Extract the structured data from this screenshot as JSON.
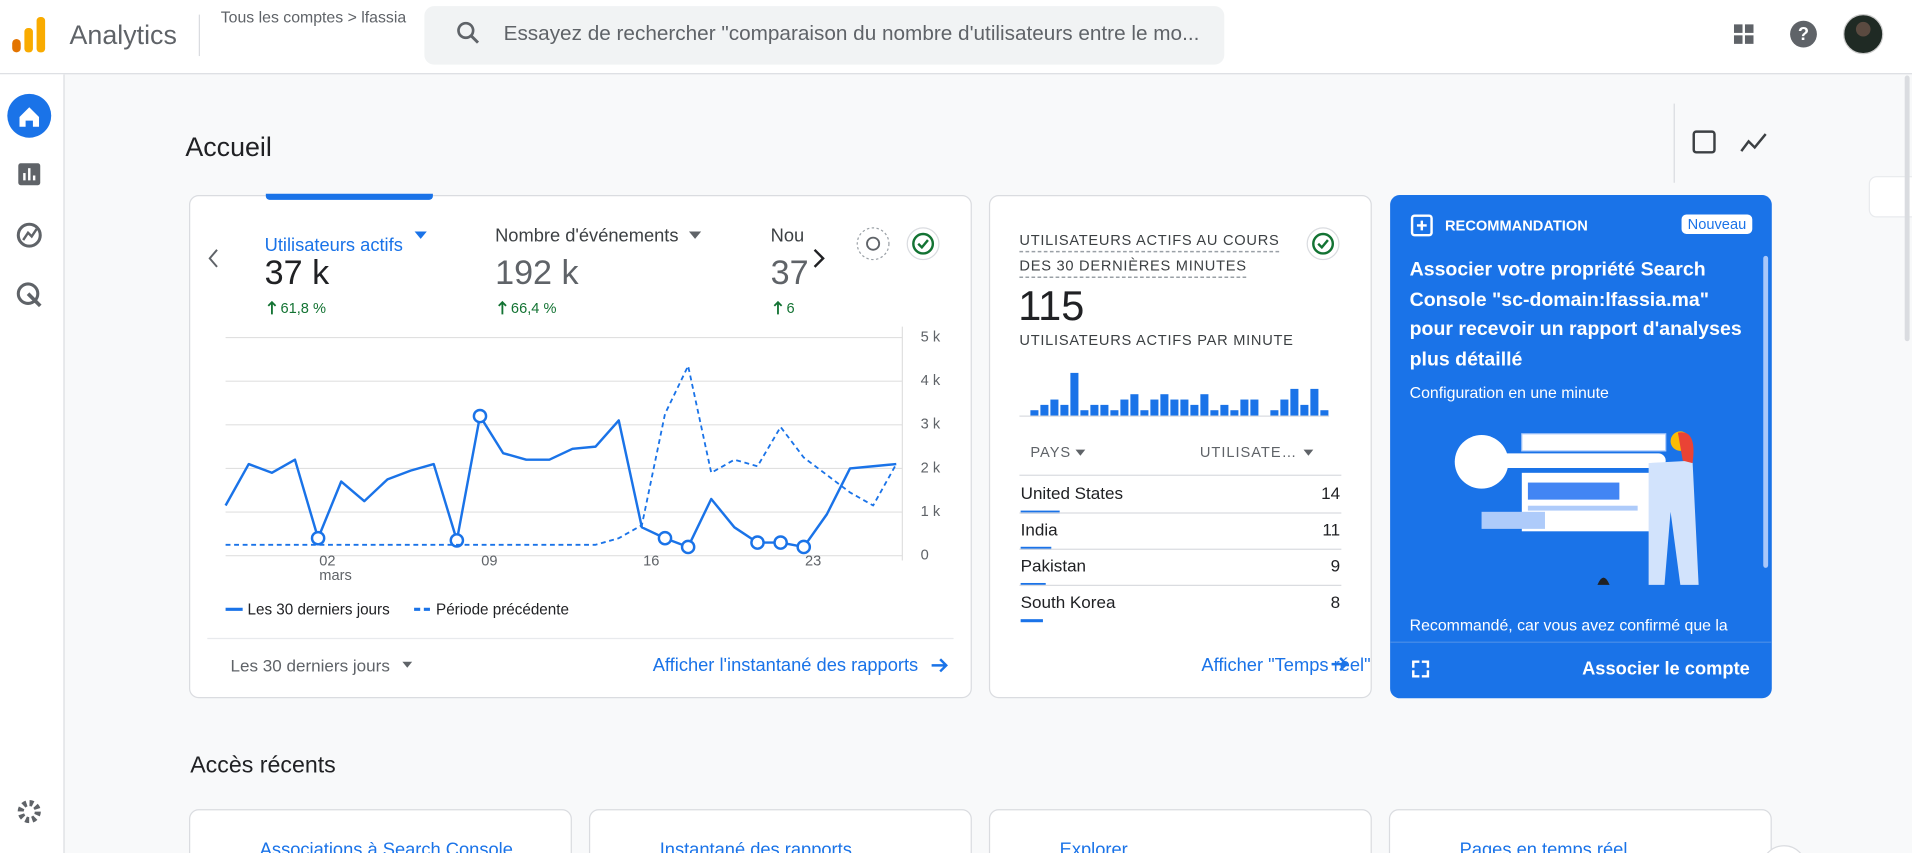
{
  "header": {
    "product": "Analytics",
    "breadcrumb": "Tous les comptes > lfassia",
    "search_placeholder": "Essayez de rechercher \"comparaison du nombre d'utilisateurs entre le mo..."
  },
  "page_title": "Accueil",
  "metrics": [
    {
      "label": "Utilisateurs actifs",
      "value": "37 k",
      "change": "61,8 %"
    },
    {
      "label": "Nombre d'événements",
      "value": "192 k",
      "change": "66,4 %"
    },
    {
      "label": "Nou",
      "value": "37",
      "change": "6"
    }
  ],
  "chart_data": [
    {
      "type": "line",
      "categories": [
        null,
        null,
        null,
        null,
        "02",
        null,
        null,
        null,
        null,
        null,
        null,
        "09",
        null,
        null,
        null,
        null,
        null,
        null,
        "16",
        null,
        null,
        null,
        null,
        null,
        null,
        "23",
        null,
        null,
        null,
        null
      ],
      "x_secondary_label": "mars",
      "series": [
        {
          "name": "Les 30 derniers jours",
          "color": "#1a73e8",
          "style": "solid",
          "values": [
            1150,
            2100,
            1900,
            2200,
            400,
            1700,
            1250,
            1750,
            1950,
            2100,
            350,
            3200,
            2350,
            2200,
            2200,
            2450,
            2500,
            3100,
            650,
            400,
            200,
            1300,
            650,
            300,
            300,
            200,
            950,
            2000,
            2050,
            2100
          ],
          "highlighted_points": [
            4,
            10,
            11,
            19,
            20,
            23,
            24,
            25
          ]
        },
        {
          "name": "Période précédente",
          "color": "#1a73e8",
          "style": "dashed",
          "values": [
            250,
            250,
            250,
            250,
            250,
            250,
            250,
            250,
            250,
            250,
            250,
            250,
            250,
            250,
            250,
            250,
            250,
            400,
            700,
            3250,
            4350,
            1900,
            2200,
            2050,
            2950,
            2250,
            1850,
            1450,
            1150,
            2100
          ]
        }
      ],
      "ylim": [
        0,
        5000
      ],
      "yticks": [
        0,
        {
          "value": 1000,
          "label": "1 k"
        },
        {
          "value": 2000,
          "label": "2 k"
        },
        {
          "value": 3000,
          "label": "3 k"
        },
        {
          "value": 4000,
          "label": "4 k"
        },
        {
          "value": 5000,
          "label": "5 k"
        }
      ],
      "grid": true
    },
    {
      "type": "bar",
      "color": "#1a73e8",
      "values": [
        1,
        2,
        3,
        2,
        8,
        1,
        2,
        2,
        1,
        3,
        4,
        1,
        3,
        4,
        3,
        3,
        2,
        4,
        1,
        2,
        1,
        3,
        3,
        0,
        1,
        3,
        5,
        2,
        5,
        1
      ]
    }
  ],
  "overview_footer": {
    "range": "Les 30 derniers jours",
    "link": "Afficher l'instantané des rapports"
  },
  "realtime": {
    "title": "UTILISATEURS ACTIFS AU COURS DES 30 DERNIÈRES MINUTES",
    "value": "115",
    "subtitle": "UTILISATEURS ACTIFS PAR MINUTE",
    "table": {
      "headers": [
        "PAYS",
        "UTILISATE…"
      ],
      "rows": [
        [
          "United States",
          14
        ],
        [
          "India",
          11
        ],
        [
          "Pakistan",
          9
        ],
        [
          "South Korea",
          8
        ]
      ]
    },
    "link": "Afficher \"Temps réel\""
  },
  "recommendation": {
    "label": "RECOMMANDATION",
    "badge": "Nouveau",
    "title": "Associer votre propriété Search Console \"sc-domain:lfassia.ma\" pour recevoir un rapport d'analyses plus détaillé",
    "subtitle": "Configuration en une minute",
    "body": "Recommandé, car vous avez confirmé que la",
    "action": "Associer le compte"
  },
  "recent": {
    "title": "Accès récents",
    "items": [
      "Associations à Search Console",
      "Instantané des rapports",
      "Explorer",
      "Pages en temps réel"
    ]
  }
}
